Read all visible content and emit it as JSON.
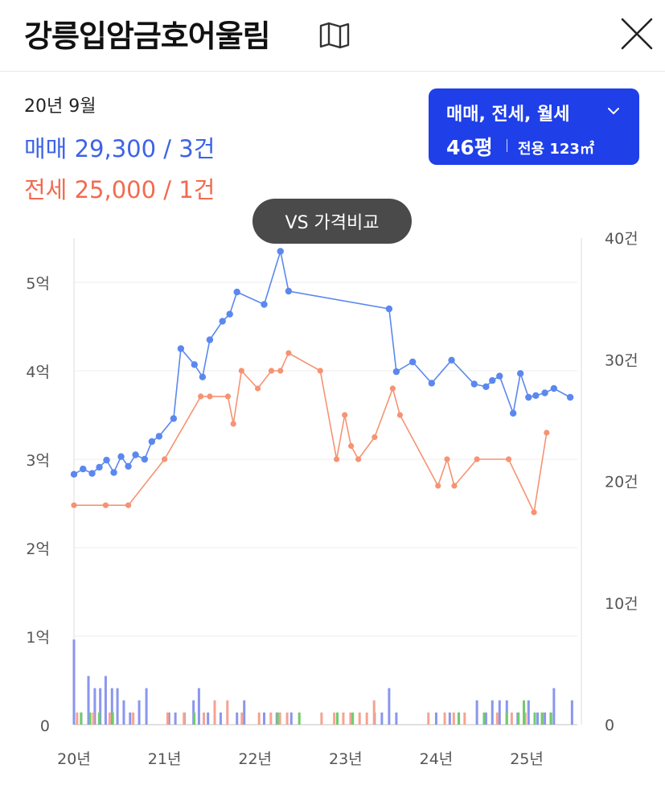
{
  "header": {
    "title": "강릉입암금호어울림",
    "map_icon": "map-book-icon",
    "close_icon": "close-icon"
  },
  "summary": {
    "date": "20년 9월",
    "sale": "매매 29,300 / 3건",
    "jeonse": "전세 25,000 / 1건"
  },
  "type_selector": {
    "types": "매매, 전세, 월세",
    "pyeong": "46평",
    "area": "전용 123㎡",
    "accent": "#1f3fe8"
  },
  "vs_button": {
    "label": "VS 가격비교"
  },
  "colors": {
    "sale": "#5b88ee",
    "jeonse": "#f59373",
    "volume_sale": "#8a96ee",
    "volume_jeonse": "#f5a391",
    "volume_monthly": "#6fcc6a"
  },
  "chart_data": {
    "type": "line",
    "x_ticks": [
      {
        "label": "20년",
        "t": 2020.0
      },
      {
        "label": "21년",
        "t": 2021.0
      },
      {
        "label": "22년",
        "t": 2022.0
      },
      {
        "label": "23년",
        "t": 2023.0
      },
      {
        "label": "24년",
        "t": 2024.0
      },
      {
        "label": "25년",
        "t": 2025.0
      }
    ],
    "xlim": [
      2020.0,
      2025.55
    ],
    "y_left_ticks": [
      "0",
      "1억",
      "2억",
      "3억",
      "4억",
      "5억"
    ],
    "ylim_left": [
      0,
      5.5
    ],
    "y_right_ticks": [
      "0",
      "10건",
      "20건",
      "30건",
      "40건"
    ],
    "ylim_right": [
      0,
      41
    ],
    "series": [
      {
        "key": "sale",
        "x": [
          2020.0,
          2020.1,
          2020.2,
          2020.28,
          2020.36,
          2020.44,
          2020.52,
          2020.6,
          2020.68,
          2020.78,
          2020.86,
          2020.94,
          2021.1,
          2021.18,
          2021.33,
          2021.42,
          2021.5,
          2021.64,
          2021.72,
          2021.8,
          2022.1,
          2022.28,
          2022.37,
          2023.48,
          2023.56,
          2023.74,
          2023.95,
          2024.17,
          2024.42,
          2024.55,
          2024.62,
          2024.7,
          2024.85,
          2024.93,
          2025.02,
          2025.1,
          2025.2,
          2025.3,
          2025.48
        ],
        "y": [
          2.83,
          2.89,
          2.84,
          2.91,
          2.99,
          2.85,
          3.03,
          2.92,
          3.05,
          3.0,
          3.2,
          3.26,
          3.46,
          4.25,
          4.07,
          3.93,
          4.35,
          4.56,
          4.64,
          4.89,
          4.75,
          5.35,
          4.9,
          4.7,
          3.99,
          4.1,
          3.86,
          4.12,
          3.85,
          3.82,
          3.89,
          3.94,
          3.52,
          3.97,
          3.7,
          3.72,
          3.75,
          3.8,
          3.7
        ]
      },
      {
        "key": "jeonse",
        "x": [
          2020.0,
          2020.35,
          2020.6,
          2021.0,
          2021.4,
          2021.5,
          2021.7,
          2021.76,
          2021.85,
          2022.03,
          2022.18,
          2022.28,
          2022.37,
          2022.72,
          2022.9,
          2022.99,
          2023.06,
          2023.14,
          2023.32,
          2023.52,
          2023.6,
          2024.02,
          2024.12,
          2024.2,
          2024.45,
          2024.8,
          2025.08,
          2025.22
        ],
        "y": [
          2.48,
          2.48,
          2.48,
          3.0,
          3.71,
          3.71,
          3.71,
          3.4,
          4.0,
          3.8,
          4.0,
          4.0,
          4.2,
          4.0,
          3.0,
          3.5,
          3.15,
          3.0,
          3.25,
          3.8,
          3.5,
          2.7,
          3.0,
          2.7,
          3.0,
          3.0,
          2.4,
          3.3
        ]
      }
    ],
    "volume": {
      "sale": [
        [
          2020.0,
          7
        ],
        [
          2020.08,
          1
        ],
        [
          2020.16,
          4
        ],
        [
          2020.23,
          3
        ],
        [
          2020.29,
          3
        ],
        [
          2020.35,
          4
        ],
        [
          2020.42,
          3
        ],
        [
          2020.48,
          3
        ],
        [
          2020.55,
          2
        ],
        [
          2020.62,
          1
        ],
        [
          2020.72,
          2
        ],
        [
          2020.8,
          3
        ],
        [
          2021.05,
          1
        ],
        [
          2021.12,
          1
        ],
        [
          2021.22,
          1
        ],
        [
          2021.32,
          2
        ],
        [
          2021.38,
          3
        ],
        [
          2021.48,
          1
        ],
        [
          2021.62,
          1
        ],
        [
          2021.8,
          1
        ],
        [
          2021.88,
          2
        ],
        [
          2022.1,
          1
        ],
        [
          2022.24,
          1
        ],
        [
          2022.4,
          1
        ],
        [
          2023.32,
          1
        ],
        [
          2023.4,
          1
        ],
        [
          2023.48,
          3
        ],
        [
          2023.56,
          1
        ],
        [
          2024.0,
          1
        ],
        [
          2024.15,
          1
        ],
        [
          2024.25,
          1
        ],
        [
          2024.45,
          2
        ],
        [
          2024.55,
          1
        ],
        [
          2024.62,
          2
        ],
        [
          2024.7,
          2
        ],
        [
          2024.78,
          2
        ],
        [
          2024.9,
          1
        ],
        [
          2025.02,
          2
        ],
        [
          2025.12,
          1
        ],
        [
          2025.2,
          1
        ],
        [
          2025.3,
          3
        ],
        [
          2025.5,
          2
        ]
      ],
      "jeonse": [
        [
          2020.02,
          1
        ],
        [
          2020.2,
          1
        ],
        [
          2020.38,
          1
        ],
        [
          2020.64,
          1
        ],
        [
          2021.02,
          1
        ],
        [
          2021.2,
          1
        ],
        [
          2021.42,
          1
        ],
        [
          2021.54,
          2
        ],
        [
          2021.68,
          2
        ],
        [
          2021.84,
          1
        ],
        [
          2022.03,
          1
        ],
        [
          2022.16,
          1
        ],
        [
          2022.26,
          1
        ],
        [
          2022.34,
          1
        ],
        [
          2022.72,
          1
        ],
        [
          2022.86,
          1
        ],
        [
          2022.96,
          1
        ],
        [
          2023.04,
          1
        ],
        [
          2023.14,
          1
        ],
        [
          2023.22,
          1
        ],
        [
          2023.3,
          2
        ],
        [
          2023.9,
          1
        ],
        [
          2024.08,
          1
        ],
        [
          2024.18,
          1
        ],
        [
          2024.3,
          1
        ],
        [
          2024.66,
          1
        ],
        [
          2024.82,
          1
        ],
        [
          2024.97,
          1
        ],
        [
          2025.16,
          1
        ],
        [
          2025.25,
          1
        ]
      ],
      "monthly": [
        [
          2020.05,
          1
        ],
        [
          2020.15,
          1
        ],
        [
          2020.25,
          1
        ],
        [
          2020.4,
          1
        ],
        [
          2021.3,
          1
        ],
        [
          2022.22,
          1
        ],
        [
          2022.46,
          1
        ],
        [
          2022.88,
          1
        ],
        [
          2023.05,
          1
        ],
        [
          2024.22,
          1
        ],
        [
          2024.5,
          1
        ],
        [
          2024.75,
          1
        ],
        [
          2024.88,
          1
        ],
        [
          2024.94,
          2
        ],
        [
          2025.06,
          1
        ],
        [
          2025.14,
          1
        ],
        [
          2025.24,
          1
        ]
      ]
    }
  }
}
